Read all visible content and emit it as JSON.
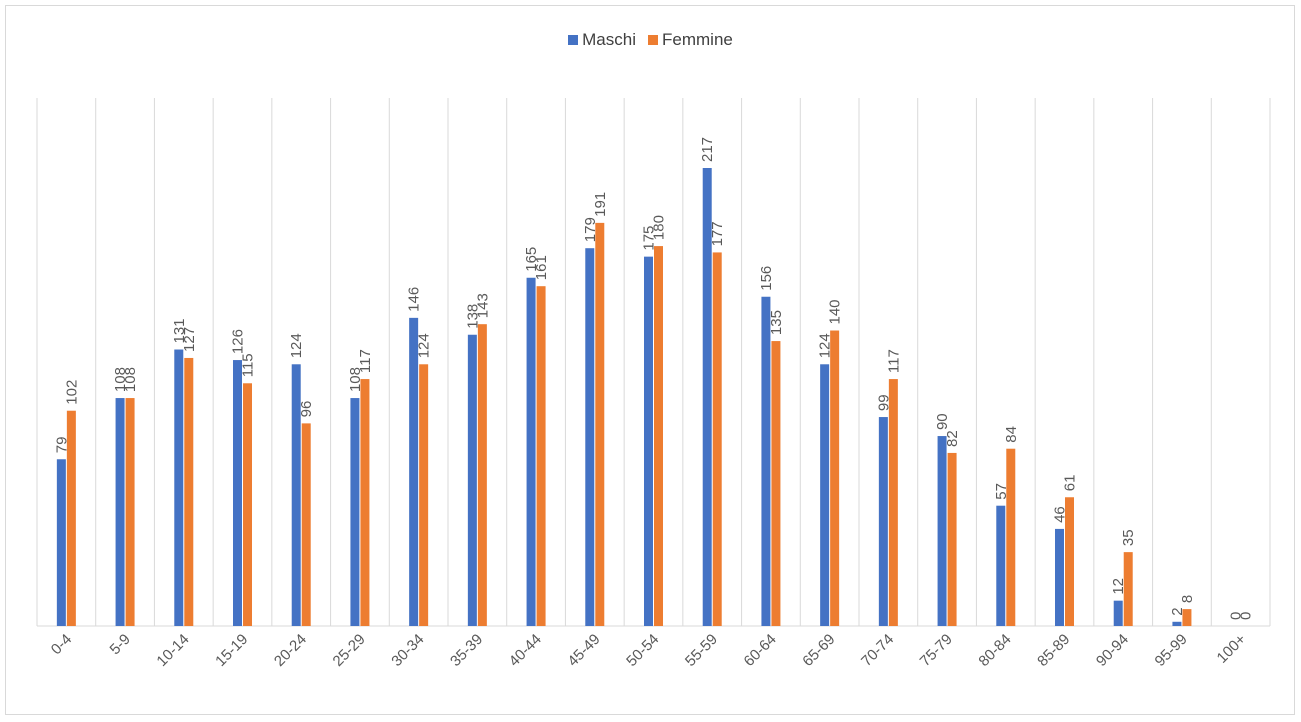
{
  "chart_data": {
    "type": "bar",
    "categories": [
      "0-4",
      "5-9",
      "10-14",
      "15-19",
      "20-24",
      "25-29",
      "30-34",
      "35-39",
      "40-44",
      "45-49",
      "50-54",
      "55-59",
      "60-64",
      "65-69",
      "70-74",
      "75-79",
      "80-84",
      "85-89",
      "90-94",
      "95-99",
      "100+"
    ],
    "series": [
      {
        "name": "Maschi",
        "color": "#4472c4",
        "values": [
          79,
          108,
          131,
          126,
          124,
          108,
          146,
          138,
          165,
          179,
          175,
          217,
          156,
          124,
          99,
          90,
          57,
          46,
          12,
          2,
          0
        ]
      },
      {
        "name": "Femmine",
        "color": "#ed7d31",
        "values": [
          102,
          108,
          127,
          115,
          96,
          117,
          124,
          143,
          161,
          191,
          180,
          177,
          135,
          140,
          117,
          82,
          84,
          61,
          35,
          8,
          0
        ]
      }
    ],
    "title": "",
    "xlabel": "",
    "ylabel": "",
    "ylim": [
      0,
      217
    ],
    "grid": "vertical category separators",
    "legend_position": "top-center",
    "data_labels": "rotated vertical above bars"
  }
}
